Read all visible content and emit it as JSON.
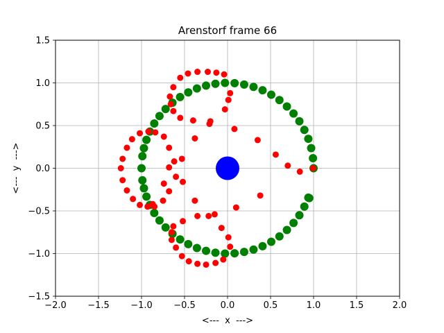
{
  "chart_data": {
    "type": "scatter",
    "title": "Arenstorf frame 66",
    "xlabel": "<---  x  --->",
    "ylabel": "<---  y  --->",
    "xlim": [
      -2.0,
      2.0
    ],
    "ylim": [
      -1.5,
      1.5
    ],
    "x_ticks": [
      -2.0,
      -1.5,
      -1.0,
      -0.5,
      0.0,
      0.5,
      1.0,
      1.5,
      2.0
    ],
    "y_ticks": [
      -1.5,
      -1.0,
      -0.5,
      0.0,
      0.5,
      1.0,
      1.5
    ],
    "x_tick_labels": [
      "−2.0",
      "−1.5",
      "−1.0",
      "−0.5",
      "0.0",
      "0.5",
      "1.0",
      "1.5",
      "2.0"
    ],
    "y_tick_labels": [
      "−1.5",
      "−1.0",
      "−0.5",
      "0.0",
      "0.5",
      "1.0",
      "1.5"
    ],
    "grid": true,
    "legend": "none",
    "series": [
      {
        "color": "#008000",
        "marker_size": "medium",
        "points": [
          [
            1.0,
            0.0
          ],
          [
            0.993,
            0.118
          ],
          [
            0.972,
            0.236
          ],
          [
            0.939,
            0.345
          ],
          [
            0.893,
            0.449
          ],
          [
            0.835,
            0.551
          ],
          [
            0.767,
            0.641
          ],
          [
            0.69,
            0.724
          ],
          [
            0.603,
            0.799
          ],
          [
            0.508,
            0.862
          ],
          [
            0.407,
            0.914
          ],
          [
            0.302,
            0.953
          ],
          [
            0.193,
            0.981
          ],
          [
            0.082,
            0.997
          ],
          [
            -0.03,
            1.0
          ],
          [
            -0.141,
            0.99
          ],
          [
            -0.25,
            0.968
          ],
          [
            -0.356,
            0.935
          ],
          [
            -0.457,
            0.889
          ],
          [
            -0.552,
            0.834
          ],
          [
            -0.64,
            0.768
          ],
          [
            -0.72,
            0.694
          ],
          [
            -0.791,
            0.612
          ],
          [
            -0.852,
            0.524
          ],
          [
            -0.903,
            0.43
          ],
          [
            -0.943,
            0.332
          ],
          [
            -0.972,
            0.235
          ],
          [
            -0.99,
            0.141
          ],
          [
            -1.0,
            0.0
          ],
          [
            -0.99,
            -0.141
          ],
          [
            -0.972,
            -0.235
          ],
          [
            -0.943,
            -0.332
          ],
          [
            -0.903,
            -0.43
          ],
          [
            -0.852,
            -0.524
          ],
          [
            -0.791,
            -0.612
          ],
          [
            -0.72,
            -0.694
          ],
          [
            -0.64,
            -0.768
          ],
          [
            -0.552,
            -0.834
          ],
          [
            -0.457,
            -0.889
          ],
          [
            -0.356,
            -0.935
          ],
          [
            -0.25,
            -0.968
          ],
          [
            -0.141,
            -0.99
          ],
          [
            -0.03,
            -1.0
          ],
          [
            0.082,
            -0.997
          ],
          [
            0.193,
            -0.981
          ],
          [
            0.302,
            -0.953
          ],
          [
            0.407,
            -0.914
          ],
          [
            0.508,
            -0.862
          ],
          [
            0.603,
            -0.799
          ],
          [
            0.69,
            -0.724
          ],
          [
            0.767,
            -0.641
          ],
          [
            0.835,
            -0.551
          ],
          [
            0.893,
            -0.449
          ],
          [
            0.939,
            -0.345
          ],
          [
            0.95,
            -0.35
          ]
        ]
      },
      {
        "color": "#ff0000",
        "marker_size": "small",
        "points": [
          [
            0.994,
            0.0
          ],
          [
            0.84,
            -0.04
          ],
          [
            0.7,
            0.03
          ],
          [
            0.56,
            0.16
          ],
          [
            0.35,
            0.33
          ],
          [
            0.08,
            0.46
          ],
          [
            -0.03,
            0.69
          ],
          [
            0.01,
            0.8
          ],
          [
            0.03,
            0.88
          ],
          [
            -0.04,
            1.1
          ],
          [
            -0.13,
            1.12
          ],
          [
            -0.23,
            1.13
          ],
          [
            -0.35,
            1.13
          ],
          [
            -0.46,
            1.11
          ],
          [
            -0.55,
            1.06
          ],
          [
            -0.63,
            0.95
          ],
          [
            -0.67,
            0.84
          ],
          [
            -0.66,
            0.75
          ],
          [
            -0.63,
            0.67
          ],
          [
            -0.55,
            0.59
          ],
          [
            -0.4,
            0.56
          ],
          [
            -0.21,
            0.52
          ],
          [
            -0.2,
            0.55
          ],
          [
            -0.38,
            0.35
          ],
          [
            -0.53,
            0.11
          ],
          [
            -0.62,
            0.08
          ],
          [
            -0.6,
            -0.1
          ],
          [
            -0.52,
            -0.16
          ],
          [
            -0.68,
            -0.27
          ],
          [
            -0.75,
            -0.38
          ],
          [
            -0.87,
            -0.42
          ],
          [
            -0.93,
            -0.45
          ],
          [
            -1.02,
            -0.43
          ],
          [
            -1.1,
            -0.36
          ],
          [
            -1.17,
            -0.26
          ],
          [
            -1.22,
            -0.14
          ],
          [
            -1.24,
            0.0
          ],
          [
            -1.22,
            0.11
          ],
          [
            -1.17,
            0.24
          ],
          [
            -1.11,
            0.34
          ],
          [
            -1.02,
            0.41
          ],
          [
            -0.92,
            0.43
          ],
          [
            -0.84,
            0.42
          ],
          [
            -0.74,
            0.37
          ],
          [
            -0.68,
            0.24
          ],
          [
            -0.68,
            0.01
          ],
          [
            -0.74,
            -0.18
          ],
          [
            -0.85,
            -0.45
          ],
          [
            -0.63,
            -0.68
          ],
          [
            -0.52,
            -0.62
          ],
          [
            -0.35,
            -0.56
          ],
          [
            -0.22,
            -0.56
          ],
          [
            -0.15,
            -0.54
          ],
          [
            -0.07,
            -0.7
          ],
          [
            0.01,
            -0.81
          ],
          [
            0.03,
            -0.92
          ],
          [
            -0.05,
            -1.07
          ],
          [
            -0.14,
            -1.11
          ],
          [
            -0.25,
            -1.13
          ],
          [
            -0.35,
            -1.12
          ],
          [
            -0.45,
            -1.09
          ],
          [
            -0.53,
            -1.03
          ],
          [
            -0.6,
            -0.93
          ],
          [
            -0.65,
            -0.84
          ],
          [
            -0.65,
            -0.75
          ],
          [
            -0.38,
            -0.38
          ],
          [
            0.1,
            -0.46
          ],
          [
            0.38,
            -0.32
          ]
        ]
      },
      {
        "color": "#0000ff",
        "marker_size": "large",
        "points": [
          [
            0.0,
            0.0
          ]
        ]
      }
    ]
  }
}
